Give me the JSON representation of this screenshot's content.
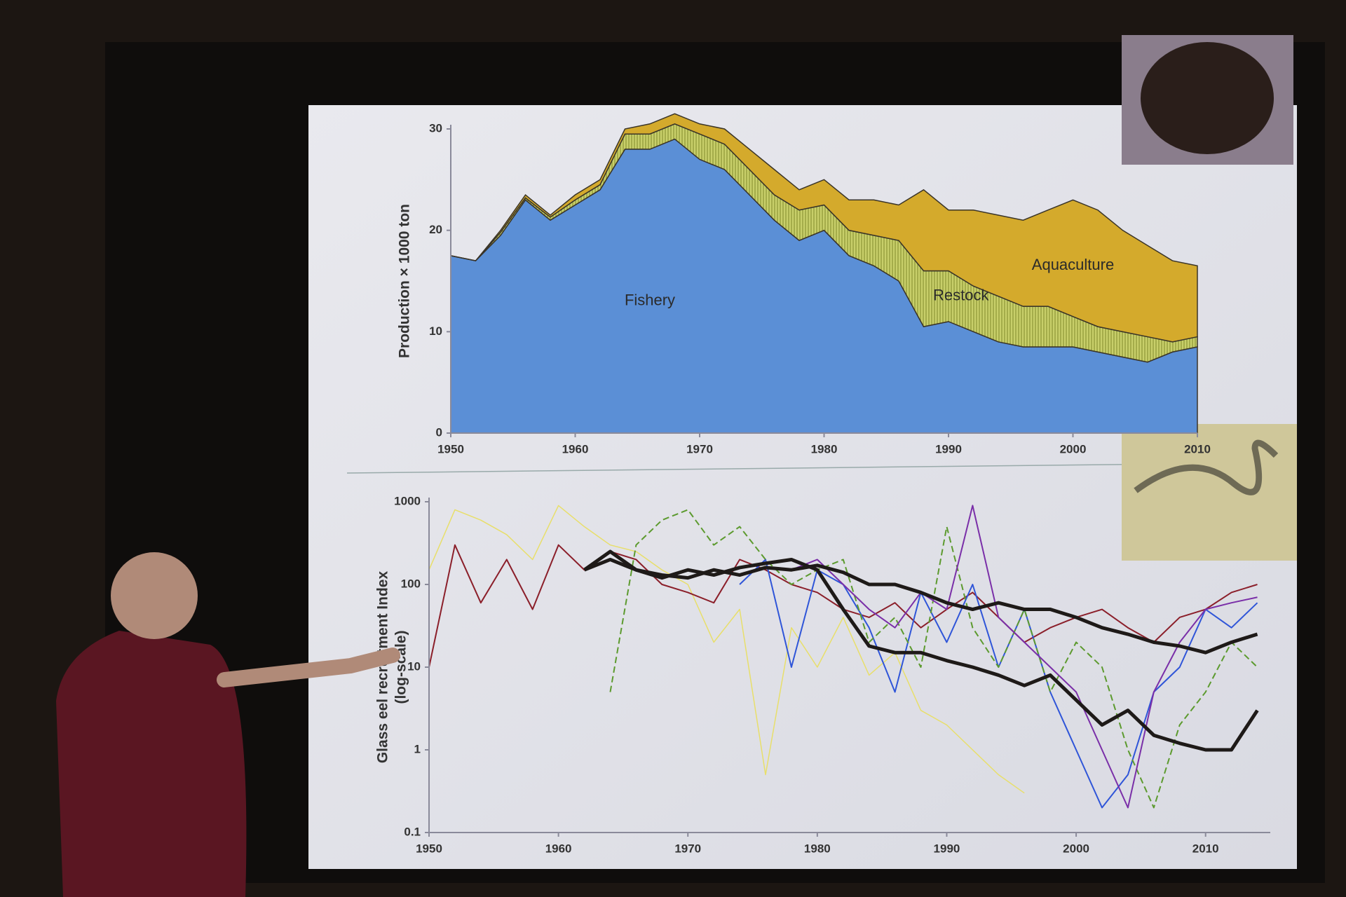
{
  "chart_data": [
    {
      "type": "area",
      "ylabel": "Production × 1000 ton",
      "x": [
        1950,
        1952,
        1954,
        1956,
        1958,
        1960,
        1962,
        1964,
        1966,
        1968,
        1970,
        1972,
        1974,
        1976,
        1978,
        1980,
        1982,
        1984,
        1986,
        1988,
        1990,
        1992,
        1994,
        1996,
        1998,
        2000,
        2002,
        2004,
        2006,
        2008,
        2010
      ],
      "series": [
        {
          "name": "Fishery",
          "color": "#5b8fd6",
          "values": [
            17.5,
            17,
            19.5,
            23,
            21,
            22.5,
            24,
            28,
            28,
            29,
            27,
            26,
            23.5,
            21,
            19,
            20,
            17.5,
            16.5,
            15,
            10.5,
            11,
            10,
            9,
            8.5,
            8.5,
            8.5,
            8,
            7.5,
            7,
            8,
            8.5
          ]
        },
        {
          "name": "Restock",
          "color": "#a9b845",
          "values": [
            0,
            0,
            0.3,
            0.2,
            0.3,
            0.5,
            0.5,
            1.5,
            1.5,
            1.5,
            2.5,
            2.5,
            2.5,
            2.5,
            3,
            2.5,
            2.5,
            3,
            4,
            5.5,
            5,
            4.5,
            4.5,
            4,
            4,
            3,
            2.5,
            2.5,
            2.5,
            1,
            1
          ]
        },
        {
          "name": "Aquaculture",
          "color": "#d4aa2c",
          "values": [
            0,
            0,
            0.2,
            0.3,
            0.2,
            0.5,
            0.5,
            0.5,
            1,
            1,
            1,
            1.5,
            2,
            2.5,
            2,
            2.5,
            3,
            3.5,
            3.5,
            8,
            6,
            7.5,
            8,
            8.5,
            9.5,
            11.5,
            11.5,
            10,
            9,
            8,
            7
          ]
        }
      ],
      "xlim": [
        1950,
        2010
      ],
      "xticks": [
        1950,
        1960,
        1970,
        1980,
        1990,
        2000,
        2010
      ],
      "ylim": [
        0,
        30
      ],
      "yticks": [
        0,
        10,
        20,
        30
      ],
      "stacked": true
    },
    {
      "type": "line",
      "ylabel": [
        "Glass eel recruitment Index",
        "(log-scale)"
      ],
      "x": [
        1950,
        1952,
        1954,
        1956,
        1958,
        1960,
        1962,
        1964,
        1966,
        1968,
        1970,
        1972,
        1974,
        1976,
        1978,
        1980,
        1982,
        1984,
        1986,
        1988,
        1990,
        1992,
        1994,
        1996,
        1998,
        2000,
        2002,
        2004,
        2006,
        2008,
        2010,
        2012,
        2014
      ],
      "series": [
        {
          "color": "#e8df6a",
          "width": 1.5,
          "values": [
            150,
            800,
            600,
            400,
            200,
            900,
            500,
            300,
            250,
            150,
            100,
            20,
            50,
            0.5,
            30,
            10,
            40,
            8,
            15,
            3,
            2,
            1,
            0.5,
            0.3,
            null,
            null,
            null,
            null,
            null,
            null,
            null,
            null,
            null
          ]
        },
        {
          "color": "#8b1f2a",
          "width": 2,
          "values": [
            10,
            300,
            60,
            200,
            50,
            300,
            150,
            250,
            200,
            100,
            80,
            60,
            200,
            150,
            100,
            80,
            50,
            40,
            60,
            30,
            50,
            80,
            40,
            20,
            30,
            40,
            50,
            30,
            20,
            40,
            50,
            80,
            100
          ]
        },
        {
          "color": "#2f55d8",
          "width": 2,
          "values": [
            null,
            null,
            null,
            null,
            null,
            null,
            null,
            null,
            null,
            null,
            null,
            null,
            100,
            200,
            10,
            150,
            100,
            30,
            5,
            80,
            20,
            100,
            10,
            50,
            5,
            1,
            0.2,
            0.5,
            5,
            10,
            50,
            30,
            60
          ]
        },
        {
          "color": "#5c9a2e",
          "width": 2,
          "dash": true,
          "values": [
            null,
            null,
            null,
            null,
            null,
            null,
            null,
            5,
            300,
            600,
            800,
            300,
            500,
            200,
            100,
            150,
            200,
            20,
            40,
            10,
            500,
            30,
            10,
            50,
            5,
            20,
            10,
            1,
            0.2,
            2,
            5,
            20,
            10
          ]
        },
        {
          "color": "#7a2fa8",
          "width": 2,
          "values": [
            null,
            null,
            null,
            null,
            null,
            null,
            null,
            null,
            null,
            null,
            null,
            null,
            null,
            null,
            150,
            200,
            100,
            50,
            30,
            80,
            50,
            900,
            40,
            20,
            10,
            5,
            1,
            0.2,
            5,
            20,
            50,
            60,
            70
          ]
        },
        {
          "color": "#1e1a18",
          "width": 5,
          "values": [
            null,
            null,
            null,
            null,
            null,
            null,
            150,
            200,
            150,
            130,
            120,
            150,
            130,
            160,
            150,
            170,
            140,
            100,
            100,
            80,
            60,
            50,
            60,
            50,
            50,
            40,
            30,
            25,
            20,
            18,
            15,
            20,
            25
          ]
        },
        {
          "color": "#1e1a18",
          "width": 5,
          "values": [
            null,
            null,
            null,
            null,
            null,
            null,
            150,
            250,
            150,
            120,
            150,
            130,
            160,
            180,
            200,
            150,
            50,
            18,
            15,
            15,
            12,
            10,
            8,
            6,
            8,
            4,
            2,
            3,
            1.5,
            1.2,
            1,
            1,
            3
          ]
        }
      ],
      "xlim": [
        1950,
        2015
      ],
      "xticks": [
        1950,
        1960,
        1970,
        1980,
        1990,
        2000,
        2010
      ],
      "ylim": [
        0.1,
        1000
      ],
      "yticks": [
        0.1,
        1,
        10,
        100,
        1000
      ],
      "log": true
    }
  ]
}
